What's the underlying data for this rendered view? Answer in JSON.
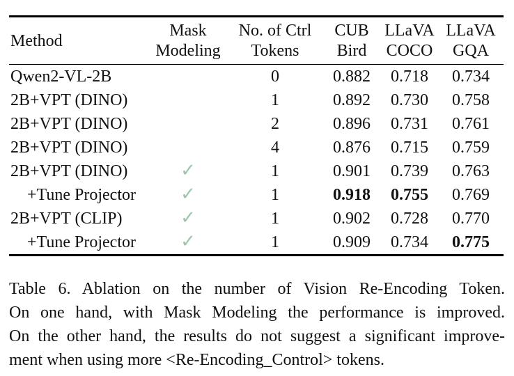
{
  "colors": {
    "background": "#ffffff",
    "text": "#111111",
    "checkmark": "#9ac7ab"
  },
  "table": {
    "header": {
      "method": "Method",
      "columns": [
        {
          "line1": "Mask",
          "line2": "Modeling"
        },
        {
          "line1": "No. of Ctrl",
          "line2": "Tokens"
        },
        {
          "line1": "CUB",
          "line2": "Bird"
        },
        {
          "line1": "LLaVA",
          "line2": "COCO"
        },
        {
          "line1": "LLaVA",
          "line2": "GQA"
        }
      ]
    },
    "checkmark_glyph": "✓",
    "rows": [
      {
        "method": "Qwen2-VL-2B",
        "indent": false,
        "mask_modeling": false,
        "tokens": "0",
        "cub": "0.882",
        "coco": "0.718",
        "gqa": "0.734",
        "bold": []
      },
      {
        "method": "2B+VPT (DINO)",
        "indent": false,
        "mask_modeling": false,
        "tokens": "1",
        "cub": "0.892",
        "coco": "0.730",
        "gqa": "0.758",
        "bold": []
      },
      {
        "method": "2B+VPT (DINO)",
        "indent": false,
        "mask_modeling": false,
        "tokens": "2",
        "cub": "0.896",
        "coco": "0.731",
        "gqa": "0.761",
        "bold": []
      },
      {
        "method": "2B+VPT (DINO)",
        "indent": false,
        "mask_modeling": false,
        "tokens": "4",
        "cub": "0.876",
        "coco": "0.715",
        "gqa": "0.759",
        "bold": []
      },
      {
        "method": "2B+VPT (DINO)",
        "indent": false,
        "mask_modeling": true,
        "tokens": "1",
        "cub": "0.901",
        "coco": "0.739",
        "gqa": "0.763",
        "bold": []
      },
      {
        "method": "+Tune Projector",
        "indent": true,
        "mask_modeling": true,
        "tokens": "1",
        "cub": "0.918",
        "coco": "0.755",
        "gqa": "0.769",
        "bold": [
          "cub",
          "coco"
        ]
      },
      {
        "method": "2B+VPT (CLIP)",
        "indent": false,
        "mask_modeling": true,
        "tokens": "1",
        "cub": "0.902",
        "coco": "0.728",
        "gqa": "0.770",
        "bold": []
      },
      {
        "method": "+Tune Projector",
        "indent": true,
        "mask_modeling": true,
        "tokens": "1",
        "cub": "0.909",
        "coco": "0.734",
        "gqa": "0.775",
        "bold": [
          "gqa"
        ]
      }
    ]
  },
  "caption": {
    "lines": [
      "Table 6.  Ablation on the number of Vision Re-Encoding Token.",
      "On one hand, with Mask Modeling the performance is improved.",
      "On the other hand, the results do not suggest a significant improve-",
      "ment when using more <Re-Encoding_Control> tokens."
    ]
  }
}
